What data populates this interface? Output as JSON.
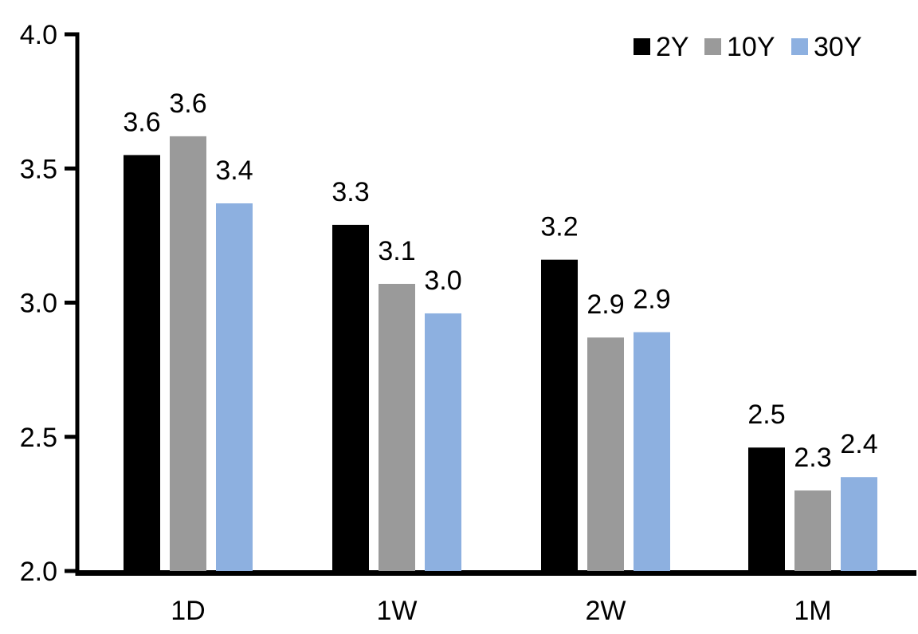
{
  "chart_data": {
    "type": "bar",
    "title": "",
    "categories": [
      "1D",
      "1W",
      "2W",
      "1M"
    ],
    "series": [
      {
        "name": "2Y",
        "color": "#000000",
        "values": [
          3.55,
          3.29,
          3.16,
          2.46
        ],
        "data_labels": [
          "3.6",
          "3.3",
          "3.2",
          "2.5"
        ]
      },
      {
        "name": "10Y",
        "color": "#9A9A9A",
        "values": [
          3.62,
          3.07,
          2.87,
          2.3
        ],
        "data_labels": [
          "3.6",
          "3.1",
          "2.9",
          "2.3"
        ]
      },
      {
        "name": "30Y",
        "color": "#8DB0E0",
        "values": [
          3.37,
          2.96,
          2.89,
          2.35
        ],
        "data_labels": [
          "3.4",
          "3.0",
          "2.9",
          "2.4"
        ]
      }
    ],
    "y_axis": {
      "min": 2.0,
      "max": 4.0,
      "step": 0.5,
      "tick_labels": [
        "2.0",
        "2.5",
        "3.0",
        "3.5",
        "4.0"
      ]
    },
    "x_axis": {
      "tick_labels": [
        "1D",
        "1W",
        "2W",
        "1M"
      ]
    },
    "legend": {
      "position": "top-right",
      "entries": [
        "2Y",
        "10Y",
        "30Y"
      ]
    },
    "grid": false,
    "data_labels_shown": true,
    "axis_color": "#000000",
    "text_color": "#000000",
    "background": "#FFFFFF"
  }
}
